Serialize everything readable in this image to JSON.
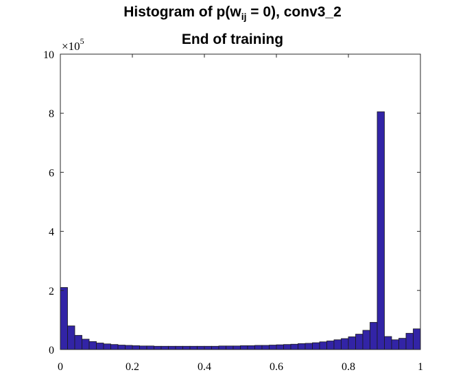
{
  "chart_data": {
    "type": "bar",
    "title_prefix": "Histogram of p(w",
    "title_subscript": "ij",
    "title_suffix": " = 0), conv3_2",
    "subtitle": "End of training",
    "y_multiplier": {
      "times": "×10",
      "exponent": "5"
    },
    "xlim": [
      0,
      1
    ],
    "ylim": [
      0,
      10
    ],
    "xticks": [
      "0",
      "0.2",
      "0.4",
      "0.6",
      "0.8",
      "1"
    ],
    "yticks": [
      "0",
      "2",
      "4",
      "6",
      "8",
      "10"
    ],
    "bin_width": 0.02,
    "bar_color": "#3224a6",
    "bins_start": [
      0,
      0.02,
      0.04,
      0.06,
      0.08,
      0.1,
      0.12,
      0.14,
      0.16,
      0.18,
      0.2,
      0.22,
      0.24,
      0.26,
      0.28,
      0.3,
      0.32,
      0.34,
      0.36,
      0.38,
      0.4,
      0.42,
      0.44,
      0.46,
      0.48,
      0.5,
      0.52,
      0.54,
      0.56,
      0.58,
      0.6,
      0.62,
      0.64,
      0.66,
      0.68,
      0.7,
      0.72,
      0.74,
      0.76,
      0.78,
      0.8,
      0.82,
      0.84,
      0.86,
      0.88,
      0.9,
      0.92,
      0.94,
      0.96,
      0.98
    ],
    "values": [
      2.1,
      0.8,
      0.48,
      0.35,
      0.27,
      0.22,
      0.19,
      0.17,
      0.15,
      0.14,
      0.13,
      0.12,
      0.12,
      0.11,
      0.11,
      0.11,
      0.11,
      0.11,
      0.11,
      0.11,
      0.11,
      0.11,
      0.12,
      0.12,
      0.12,
      0.13,
      0.13,
      0.14,
      0.14,
      0.15,
      0.16,
      0.17,
      0.18,
      0.2,
      0.21,
      0.23,
      0.26,
      0.29,
      0.33,
      0.37,
      0.43,
      0.52,
      0.65,
      0.92,
      8.05,
      0.44,
      0.33,
      0.38,
      0.55,
      0.7
    ]
  }
}
